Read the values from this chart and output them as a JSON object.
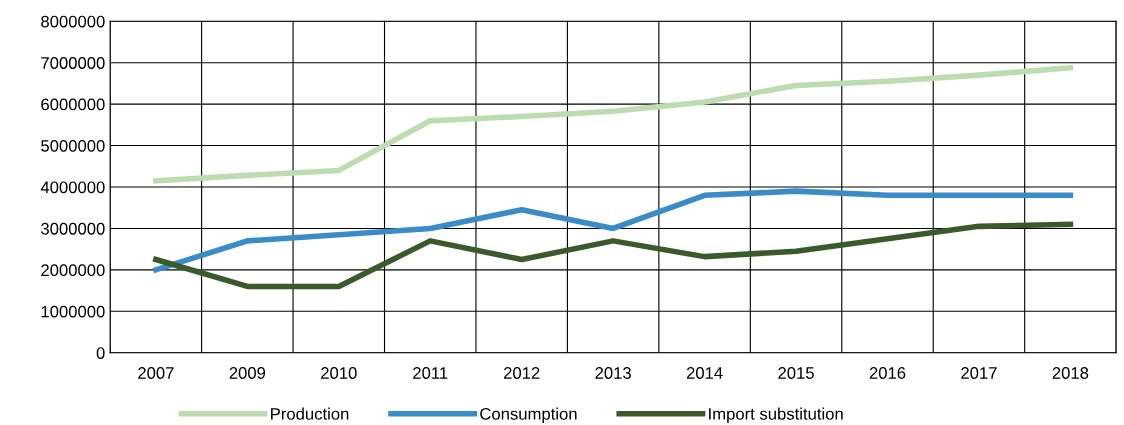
{
  "chart_data": {
    "type": "line",
    "categories": [
      "2007",
      "2009",
      "2010",
      "2011",
      "2012",
      "2013",
      "2014",
      "2015",
      "2016",
      "2017",
      "2018"
    ],
    "series": [
      {
        "name": "Production",
        "color": "#bddcb2",
        "values": [
          4150000,
          4280000,
          4400000,
          5600000,
          5700000,
          5830000,
          6050000,
          6450000,
          6550000,
          6700000,
          6880000
        ]
      },
      {
        "name": "Consumption",
        "color": "#3a8cc8",
        "values": [
          2000000,
          2700000,
          2850000,
          3000000,
          3450000,
          3000000,
          3800000,
          3900000,
          3800000,
          3800000,
          3800000
        ]
      },
      {
        "name": "Import substitution",
        "color": "#3b5a2c",
        "values": [
          2250000,
          1600000,
          1600000,
          2700000,
          2250000,
          2700000,
          2320000,
          2450000,
          2750000,
          3050000,
          3100000
        ]
      }
    ],
    "ylim": [
      0,
      8000000
    ],
    "yticks": [
      0,
      1000000,
      2000000,
      3000000,
      4000000,
      5000000,
      6000000,
      7000000,
      8000000
    ],
    "grid": true,
    "legend": "bottom",
    "marker": "none",
    "line_style": "solid"
  }
}
